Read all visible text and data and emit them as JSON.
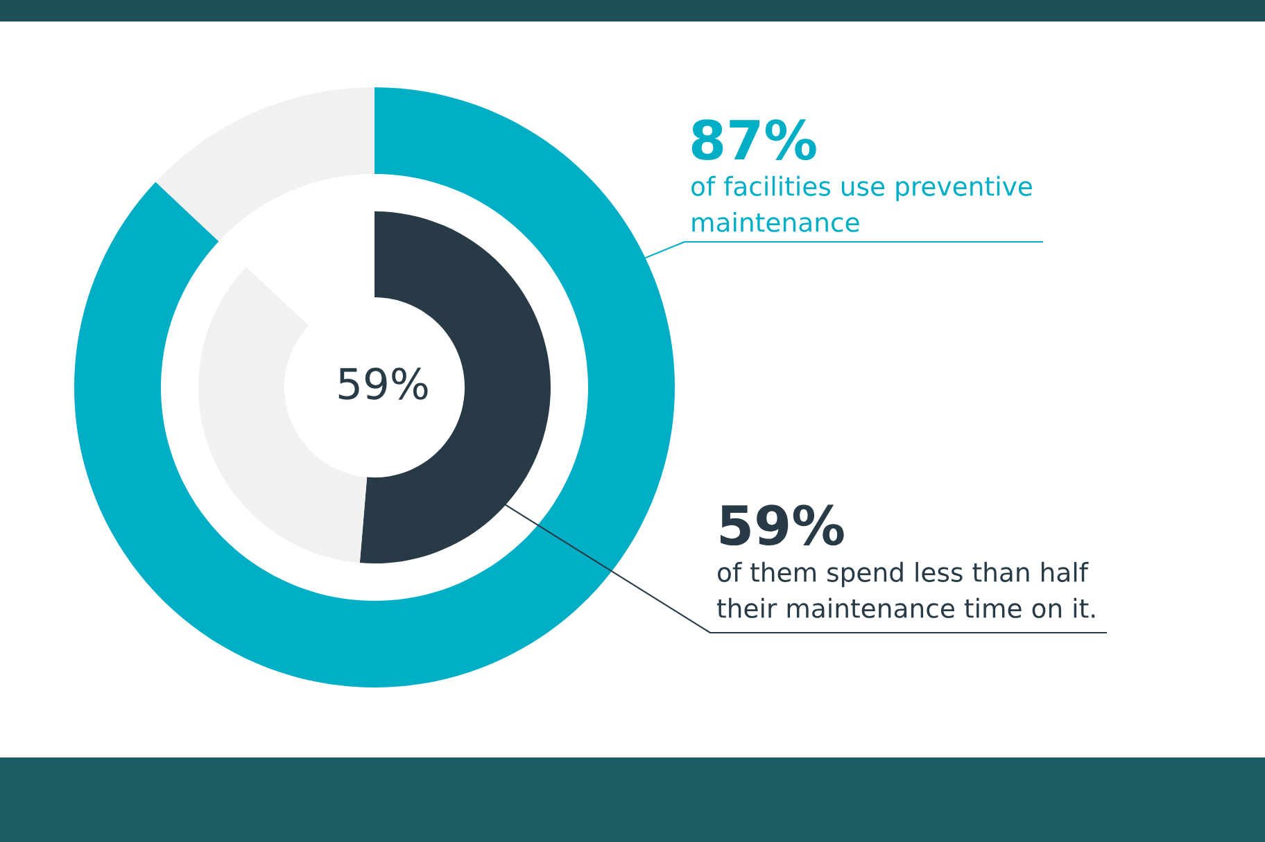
{
  "chart_data": {
    "type": "donut",
    "series": [
      {
        "values": [
          87,
          13
        ],
        "colors": [
          "#00aec6",
          "#f1f1f1"
        ]
      },
      {
        "values": [
          59,
          41
        ],
        "colors": [
          "#273a45",
          "#f1f1f1"
        ]
      }
    ],
    "annotations": [
      "59%",
      "87%",
      "of facilities use preventive\nmaintenance",
      "59%",
      "of them spend less than half\ntheir maintenance time on it."
    ]
  }
}
